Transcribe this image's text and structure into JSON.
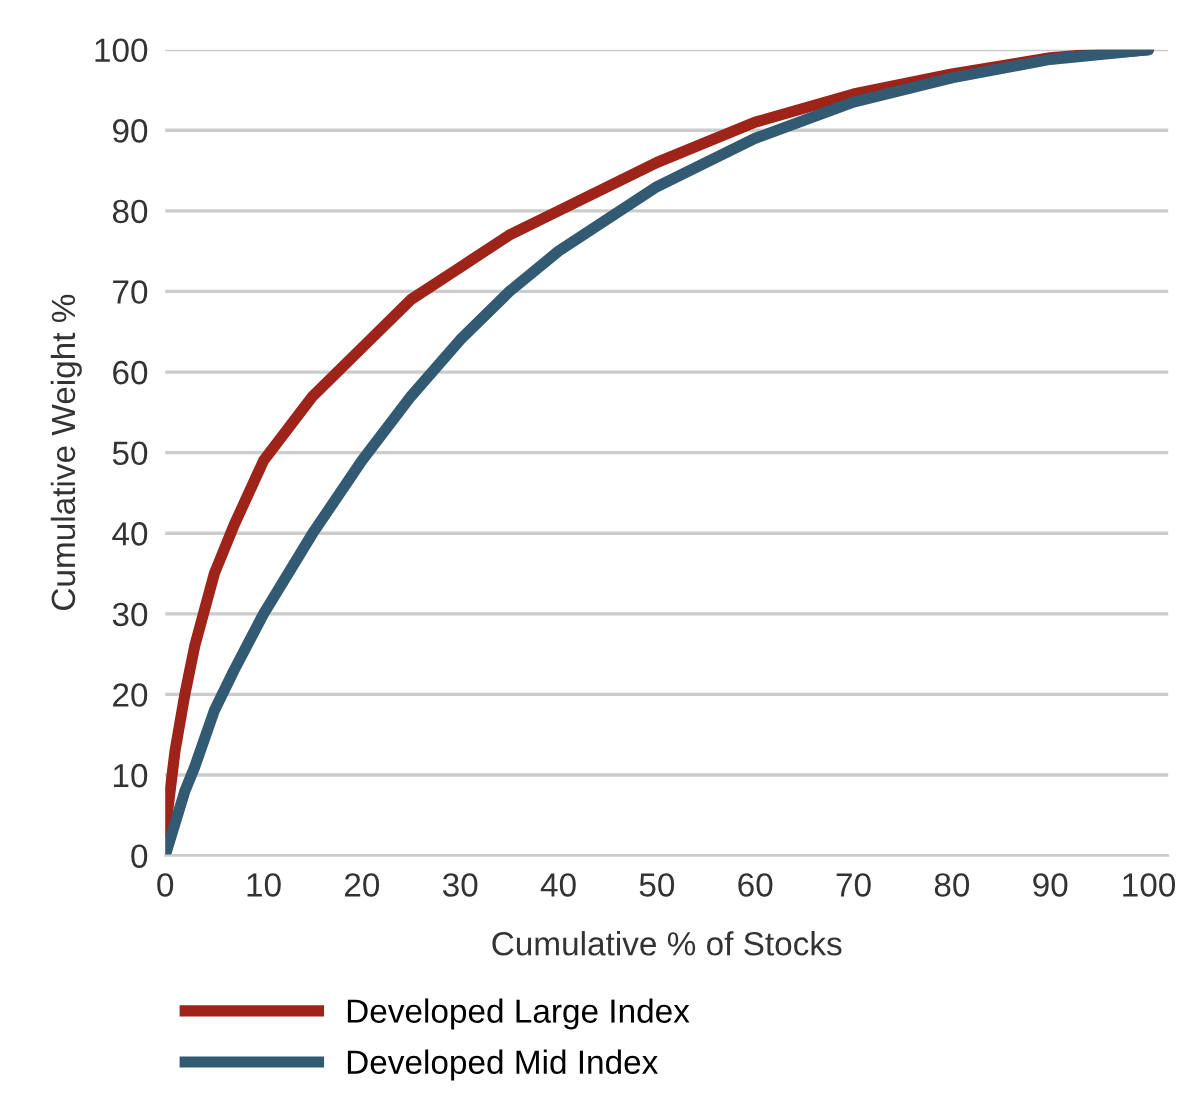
{
  "chart_data": {
    "type": "line",
    "xlabel": "Cumulative % of Stocks",
    "ylabel": "Cumulative Weight %",
    "xlim": [
      0,
      102
    ],
    "xticks": [
      0,
      10,
      20,
      30,
      40,
      50,
      60,
      70,
      80,
      90,
      100
    ],
    "ylim": [
      0,
      100
    ],
    "yticks": [
      0,
      10,
      20,
      30,
      40,
      50,
      60,
      70,
      80,
      90,
      100
    ],
    "grid": "y",
    "legend": "bottom",
    "marker": "none",
    "line_style": "solid",
    "series": [
      {
        "name": "Developed Large Index",
        "color": "#9e2318",
        "x": [
          0,
          1,
          2,
          3,
          5,
          7,
          10,
          15,
          20,
          25,
          30,
          35,
          40,
          50,
          60,
          70,
          80,
          90,
          100
        ],
        "values": [
          3,
          13,
          20,
          26,
          35,
          41,
          49,
          57,
          63,
          69,
          73,
          77,
          80,
          86,
          91,
          94.5,
          97,
          99,
          100
        ]
      },
      {
        "name": "Developed Mid Index",
        "color": "#325a72",
        "x": [
          0,
          1,
          2,
          3,
          5,
          7,
          10,
          15,
          20,
          25,
          30,
          35,
          40,
          50,
          60,
          70,
          80,
          90,
          100
        ],
        "values": [
          0,
          4,
          8,
          11,
          18,
          23,
          30,
          40,
          49,
          57,
          64,
          70,
          75,
          83,
          89,
          93.5,
          96.5,
          98.8,
          100
        ]
      }
    ]
  }
}
